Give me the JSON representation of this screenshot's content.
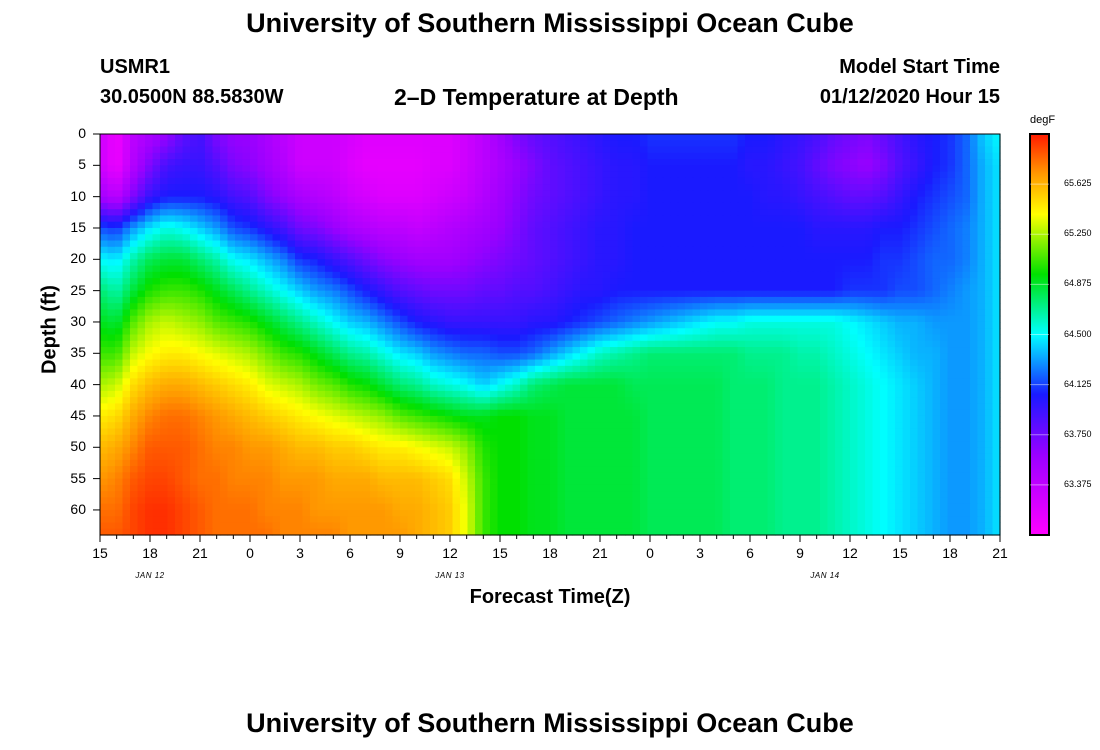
{
  "page": {
    "title_top": "University of Southern Mississippi Ocean Cube",
    "title_bottom": "University of Southern Mississippi Ocean Cube",
    "station_id": "USMR1",
    "station_coords": "30.0500N 88.5830W",
    "plot_title": "2–D Temperature at Depth",
    "model_start_label": "Model Start Time",
    "model_start_value": "01/12/2020 Hour 15"
  },
  "chart_data": {
    "type": "heatmap",
    "title": "2–D Temperature at Depth",
    "xlabel": "Forecast Time(Z)",
    "ylabel": "Depth (ft)",
    "x_tick_labels": [
      "15",
      "18",
      "21",
      "0",
      "3",
      "6",
      "9",
      "12",
      "15",
      "18",
      "21",
      "0",
      "3",
      "6",
      "9",
      "12",
      "15",
      "18",
      "21"
    ],
    "x_range_hours": [
      0,
      54
    ],
    "date_labels": [
      {
        "text": "JAN 12",
        "hour": 3
      },
      {
        "text": "JAN 13",
        "hour": 21
      },
      {
        "text": "JAN 14",
        "hour": 43.5
      }
    ],
    "y_tick_labels": [
      "0",
      "5",
      "10",
      "15",
      "20",
      "25",
      "30",
      "35",
      "40",
      "45",
      "50",
      "55",
      "60"
    ],
    "ylim": [
      0,
      64
    ],
    "colorbar": {
      "unit": "degF",
      "range": [
        63.0,
        66.0
      ],
      "ticks": [
        "65.625",
        "65.250",
        "64.875",
        "64.500",
        "64.125",
        "63.750",
        "63.375"
      ],
      "tick_values": [
        65.625,
        65.25,
        64.875,
        64.5,
        64.125,
        63.75,
        63.375
      ]
    },
    "depth_levels_ft": [
      0,
      5,
      10,
      15,
      20,
      25,
      30,
      35,
      40,
      45,
      50,
      55,
      60,
      64
    ],
    "time_hours": [
      0,
      1,
      2,
      3,
      4,
      5,
      6,
      7,
      8,
      9,
      10,
      11,
      12,
      13,
      14,
      15,
      16,
      17,
      18,
      19,
      20,
      21,
      22,
      23,
      24,
      25,
      26,
      27,
      28,
      29,
      30,
      31,
      32,
      33,
      34,
      35,
      36,
      37,
      38,
      39,
      40,
      41,
      42,
      43,
      44,
      45,
      46,
      47,
      48,
      49,
      50,
      51,
      52,
      53,
      54
    ],
    "temperature_degF": [
      [
        63.3,
        63.1,
        63.4,
        63.5,
        63.6,
        63.8,
        63.9,
        63.7,
        63.6,
        63.6,
        63.5,
        63.4,
        63.3,
        63.3,
        63.3,
        63.25,
        63.2,
        63.2,
        63.2,
        63.2,
        63.2,
        63.2,
        63.3,
        63.4,
        63.55,
        63.7,
        63.8,
        63.85,
        63.9,
        63.95,
        64.0,
        64.05,
        64.05,
        64.1,
        64.1,
        64.1,
        64.1,
        64.1,
        64.1,
        64.05,
        64.05,
        64.0,
        63.95,
        63.9,
        63.8,
        63.75,
        63.7,
        63.8,
        63.9,
        64.0,
        64.05,
        64.1,
        64.2,
        64.4,
        64.5
      ],
      [
        63.3,
        63.1,
        63.45,
        63.7,
        63.9,
        63.95,
        63.95,
        63.85,
        63.7,
        63.65,
        63.55,
        63.45,
        63.3,
        63.3,
        63.3,
        63.2,
        63.15,
        63.15,
        63.15,
        63.15,
        63.2,
        63.2,
        63.3,
        63.4,
        63.5,
        63.6,
        63.7,
        63.8,
        63.85,
        63.9,
        63.95,
        64.0,
        64.0,
        64.05,
        64.05,
        64.05,
        64.05,
        64.05,
        64.05,
        64.0,
        64.0,
        63.95,
        63.9,
        63.8,
        63.7,
        63.65,
        63.6,
        63.7,
        63.85,
        63.95,
        64.05,
        64.1,
        64.2,
        64.35,
        64.45
      ],
      [
        63.55,
        63.4,
        63.7,
        63.95,
        64.05,
        64.05,
        64.05,
        64.0,
        63.9,
        63.85,
        63.7,
        63.6,
        63.5,
        63.45,
        63.4,
        63.3,
        63.25,
        63.2,
        63.2,
        63.2,
        63.25,
        63.3,
        63.35,
        63.45,
        63.55,
        63.65,
        63.75,
        63.8,
        63.85,
        63.9,
        63.95,
        64.0,
        64.0,
        64.05,
        64.05,
        64.05,
        64.05,
        64.05,
        64.05,
        64.05,
        64.0,
        64.0,
        63.95,
        63.9,
        63.85,
        63.8,
        63.8,
        63.85,
        63.95,
        64.05,
        64.1,
        64.15,
        64.2,
        64.35,
        64.45
      ],
      [
        64.15,
        64.1,
        64.3,
        64.45,
        64.55,
        64.5,
        64.4,
        64.3,
        64.15,
        64.1,
        64.0,
        63.9,
        63.75,
        63.7,
        63.6,
        63.5,
        63.45,
        63.4,
        63.4,
        63.35,
        63.4,
        63.45,
        63.5,
        63.55,
        63.6,
        63.7,
        63.8,
        63.85,
        63.9,
        63.95,
        64.0,
        64.0,
        64.05,
        64.05,
        64.05,
        64.05,
        64.05,
        64.05,
        64.05,
        64.05,
        64.05,
        64.05,
        64.05,
        64.0,
        64.0,
        64.0,
        64.0,
        64.05,
        64.05,
        64.1,
        64.15,
        64.2,
        64.25,
        64.35,
        64.45
      ],
      [
        64.5,
        64.45,
        64.65,
        64.8,
        64.85,
        64.85,
        64.75,
        64.65,
        64.5,
        64.45,
        64.35,
        64.25,
        64.1,
        64.05,
        63.95,
        63.85,
        63.75,
        63.65,
        63.6,
        63.55,
        63.55,
        63.55,
        63.6,
        63.65,
        63.7,
        63.75,
        63.8,
        63.85,
        63.9,
        63.95,
        64.0,
        64.0,
        64.05,
        64.05,
        64.05,
        64.05,
        64.05,
        64.05,
        64.05,
        64.05,
        64.05,
        64.05,
        64.05,
        64.05,
        64.05,
        64.05,
        64.05,
        64.1,
        64.1,
        64.15,
        64.2,
        64.2,
        64.25,
        64.35,
        64.45
      ],
      [
        64.75,
        64.65,
        64.85,
        65.0,
        65.05,
        65.05,
        65.0,
        64.9,
        64.8,
        64.7,
        64.6,
        64.5,
        64.4,
        64.3,
        64.25,
        64.15,
        64.05,
        63.95,
        63.85,
        63.8,
        63.75,
        63.75,
        63.75,
        63.8,
        63.8,
        63.85,
        63.85,
        63.9,
        63.95,
        64.0,
        64.0,
        64.05,
        64.05,
        64.05,
        64.05,
        64.05,
        64.05,
        64.05,
        64.05,
        64.05,
        64.05,
        64.05,
        64.05,
        64.05,
        64.05,
        64.1,
        64.1,
        64.1,
        64.15,
        64.15,
        64.2,
        64.25,
        64.3,
        64.35,
        64.45
      ],
      [
        64.9,
        64.85,
        65.1,
        65.25,
        65.3,
        65.25,
        65.2,
        65.1,
        65.05,
        65.0,
        64.9,
        64.8,
        64.7,
        64.6,
        64.5,
        64.4,
        64.35,
        64.25,
        64.15,
        64.05,
        64.0,
        63.95,
        63.95,
        63.95,
        63.95,
        63.95,
        64.0,
        64.0,
        64.05,
        64.1,
        64.15,
        64.2,
        64.25,
        64.3,
        64.35,
        64.4,
        64.45,
        64.5,
        64.5,
        64.55,
        64.55,
        64.55,
        64.55,
        64.55,
        64.55,
        64.5,
        64.45,
        64.4,
        64.35,
        64.35,
        64.3,
        64.3,
        64.3,
        64.35,
        64.45
      ],
      [
        65.05,
        65.05,
        65.3,
        65.4,
        65.45,
        65.45,
        65.4,
        65.35,
        65.3,
        65.25,
        65.15,
        65.05,
        65.0,
        64.9,
        64.8,
        64.7,
        64.65,
        64.55,
        64.45,
        64.4,
        64.3,
        64.25,
        64.2,
        64.2,
        64.15,
        64.15,
        64.2,
        64.3,
        64.4,
        64.5,
        64.6,
        64.65,
        64.7,
        64.75,
        64.75,
        64.75,
        64.75,
        64.75,
        64.75,
        64.7,
        64.7,
        64.7,
        64.65,
        64.65,
        64.6,
        64.55,
        64.5,
        64.45,
        64.4,
        64.35,
        64.35,
        64.3,
        64.3,
        64.35,
        64.45
      ],
      [
        65.25,
        65.3,
        65.5,
        65.6,
        65.65,
        65.65,
        65.6,
        65.55,
        65.5,
        65.45,
        65.35,
        65.3,
        65.25,
        65.15,
        65.1,
        65.0,
        64.95,
        64.85,
        64.75,
        64.7,
        64.6,
        64.55,
        64.5,
        64.4,
        64.5,
        64.6,
        64.75,
        64.8,
        64.85,
        64.85,
        64.85,
        64.85,
        64.8,
        64.8,
        64.8,
        64.8,
        64.8,
        64.8,
        64.75,
        64.75,
        64.75,
        64.7,
        64.7,
        64.7,
        64.65,
        64.6,
        64.55,
        64.5,
        64.45,
        64.4,
        64.35,
        64.3,
        64.3,
        64.35,
        64.45
      ],
      [
        65.45,
        65.5,
        65.65,
        65.75,
        65.8,
        65.8,
        65.75,
        65.7,
        65.65,
        65.6,
        65.55,
        65.5,
        65.45,
        65.4,
        65.35,
        65.3,
        65.25,
        65.2,
        65.1,
        65.05,
        65.0,
        64.95,
        64.9,
        64.9,
        64.95,
        64.95,
        64.9,
        64.9,
        64.85,
        64.85,
        64.85,
        64.85,
        64.85,
        64.8,
        64.8,
        64.8,
        64.8,
        64.8,
        64.75,
        64.75,
        64.75,
        64.7,
        64.7,
        64.7,
        64.65,
        64.6,
        64.55,
        64.5,
        64.45,
        64.4,
        64.35,
        64.3,
        64.3,
        64.35,
        64.45
      ],
      [
        65.6,
        65.65,
        65.75,
        65.85,
        65.85,
        65.85,
        65.8,
        65.75,
        65.75,
        65.7,
        65.7,
        65.65,
        65.6,
        65.6,
        65.55,
        65.55,
        65.5,
        65.45,
        65.45,
        65.4,
        65.35,
        65.3,
        65.2,
        65.0,
        64.95,
        64.95,
        64.9,
        64.9,
        64.85,
        64.85,
        64.85,
        64.85,
        64.85,
        64.8,
        64.8,
        64.8,
        64.8,
        64.8,
        64.75,
        64.75,
        64.75,
        64.7,
        64.7,
        64.7,
        64.65,
        64.6,
        64.55,
        64.5,
        64.45,
        64.4,
        64.35,
        64.3,
        64.3,
        64.35,
        64.45
      ],
      [
        65.7,
        65.75,
        65.85,
        65.9,
        65.9,
        65.85,
        65.8,
        65.8,
        65.75,
        65.75,
        65.75,
        65.7,
        65.7,
        65.7,
        65.65,
        65.65,
        65.65,
        65.6,
        65.6,
        65.6,
        65.55,
        65.5,
        65.3,
        65.05,
        64.95,
        64.95,
        64.9,
        64.9,
        64.85,
        64.85,
        64.85,
        64.85,
        64.85,
        64.8,
        64.8,
        64.8,
        64.8,
        64.8,
        64.75,
        64.75,
        64.75,
        64.7,
        64.7,
        64.7,
        64.65,
        64.6,
        64.55,
        64.5,
        64.45,
        64.4,
        64.35,
        64.3,
        64.3,
        64.35,
        64.45
      ],
      [
        65.8,
        65.8,
        65.9,
        65.95,
        65.95,
        65.9,
        65.85,
        65.8,
        65.8,
        65.8,
        65.75,
        65.75,
        65.75,
        65.7,
        65.7,
        65.7,
        65.7,
        65.7,
        65.65,
        65.65,
        65.6,
        65.55,
        65.35,
        65.05,
        64.95,
        64.95,
        64.9,
        64.9,
        64.85,
        64.85,
        64.85,
        64.85,
        64.85,
        64.8,
        64.8,
        64.8,
        64.8,
        64.8,
        64.75,
        64.75,
        64.75,
        64.7,
        64.7,
        64.7,
        64.65,
        64.6,
        64.55,
        64.5,
        64.45,
        64.4,
        64.35,
        64.3,
        64.3,
        64.35,
        64.45
      ],
      [
        65.85,
        65.85,
        65.9,
        65.95,
        65.95,
        65.9,
        65.85,
        65.8,
        65.8,
        65.8,
        65.8,
        65.75,
        65.75,
        65.75,
        65.75,
        65.7,
        65.7,
        65.7,
        65.7,
        65.65,
        65.6,
        65.55,
        65.35,
        65.05,
        64.95,
        64.95,
        64.9,
        64.9,
        64.85,
        64.85,
        64.85,
        64.85,
        64.85,
        64.8,
        64.8,
        64.8,
        64.8,
        64.8,
        64.75,
        64.75,
        64.75,
        64.7,
        64.7,
        64.7,
        64.65,
        64.6,
        64.55,
        64.5,
        64.45,
        64.4,
        64.35,
        64.3,
        64.3,
        64.35,
        64.45
      ]
    ]
  }
}
